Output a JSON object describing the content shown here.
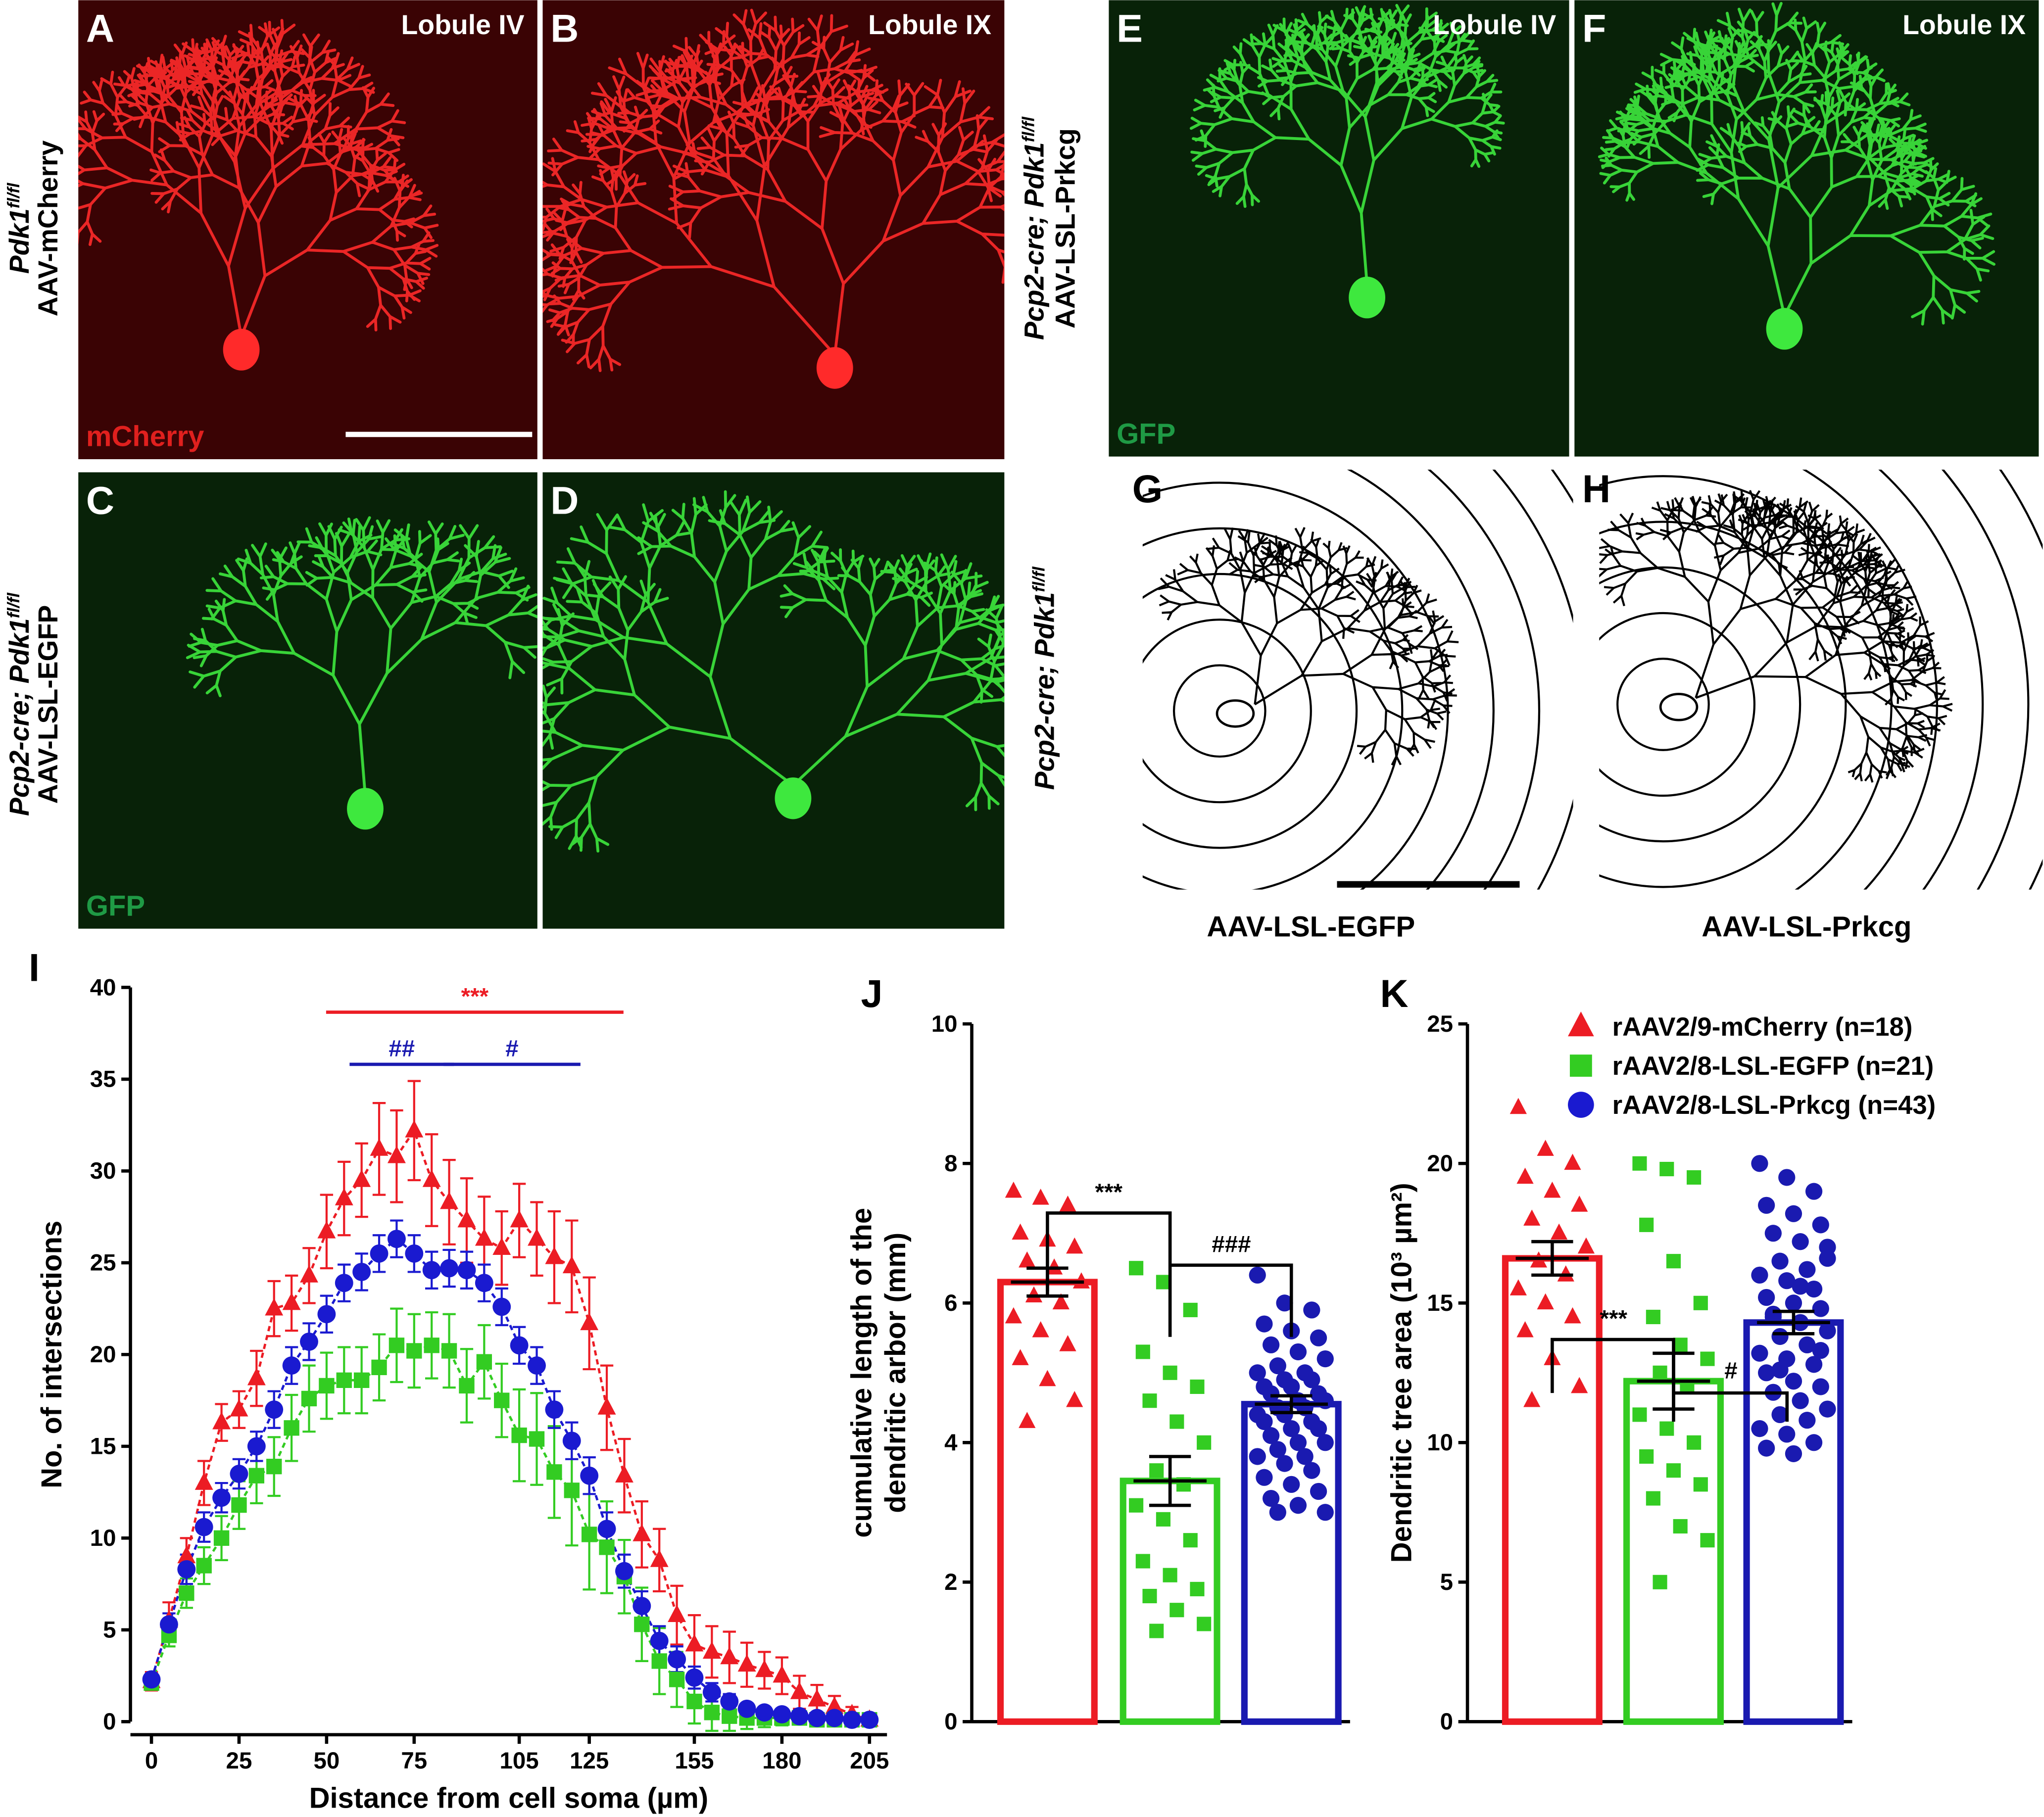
{
  "images": [
    {
      "letter": "A",
      "region": "Lobule IV",
      "stain": "mCherry",
      "color": "#ff2a2a",
      "stain_color": "#e0201e"
    },
    {
      "letter": "B",
      "region": "Lobule IX",
      "color": "#ff2a2a"
    },
    {
      "letter": "C",
      "stain": "GFP",
      "color": "#3ee83e",
      "stain_color": "#1f9a45"
    },
    {
      "letter": "D",
      "color": "#3ee83e"
    },
    {
      "letter": "E",
      "region": "Lobule IV",
      "stain": "GFP",
      "color": "#3ee83e",
      "stain_color": "#1f9a45"
    },
    {
      "letter": "F",
      "region": "Lobule IX",
      "color": "#3ee83e"
    }
  ],
  "genotype_labels": [
    {
      "lines": [
        {
          "text": "Pdk1",
          "sup": "fl/fl"
        },
        {
          "text": "AAV-mCherry"
        }
      ]
    },
    {
      "lines": [
        {
          "text": "Pcp2-cre; Pdk1",
          "sup": "fl/fl"
        },
        {
          "text": "AAV-LSL-EGFP"
        }
      ]
    },
    {
      "lines": [
        {
          "text": "Pcp2-cre; Pdk1",
          "sup": "fl/fl"
        },
        {
          "text": "AAV-LSL-Prkcg"
        }
      ]
    },
    {
      "lines": [
        {
          "text": "Pcp2-cre; Pdk1",
          "sup": "fl/fl"
        }
      ]
    }
  ],
  "tracings": [
    {
      "letter": "G",
      "caption": "AAV-LSL-EGFP"
    },
    {
      "letter": "H",
      "caption": "AAV-LSL-Prkcg"
    }
  ],
  "chart_data": [
    {
      "type": "line",
      "panel": "I",
      "xlabel": "Distance from cell soma (µm)",
      "ylabel": "No. of intersections",
      "x": [
        0,
        5,
        10,
        15,
        20,
        25,
        30,
        35,
        40,
        45,
        50,
        55,
        60,
        65,
        70,
        75,
        80,
        85,
        90,
        95,
        100,
        105,
        110,
        115,
        120,
        125,
        130,
        135,
        140,
        145,
        150,
        155,
        160,
        165,
        170,
        175,
        180,
        185,
        190,
        195,
        200,
        205
      ],
      "xlim": [
        -6,
        210
      ],
      "xticks": [
        0,
        25,
        50,
        75,
        105,
        125,
        155,
        180,
        205
      ],
      "ylim": [
        0,
        40
      ],
      "yticks": [
        0,
        5,
        10,
        15,
        20,
        25,
        30,
        35,
        40
      ],
      "series": [
        {
          "name": "rAAV2/9-mCherry (n=18)",
          "color": "#ec1c24",
          "marker": "triangle",
          "values": [
            2.2,
            5.5,
            9,
            13,
            16.3,
            17,
            18.7,
            22.5,
            22.8,
            24.3,
            26.7,
            28.5,
            29.5,
            31.2,
            30.8,
            32.2,
            29.5,
            28.3,
            27.3,
            26.3,
            25.8,
            27.3,
            26.3,
            25.3,
            24.8,
            21.7,
            17.1,
            13.4,
            10.2,
            8.8,
            5.8,
            4.2,
            3.8,
            3.5,
            3.1,
            2.8,
            2.5,
            1.6,
            1.2,
            0.8,
            0.4,
            0.1
          ],
          "errors": [
            0.5,
            1.0,
            1.0,
            1.2,
            1.0,
            1.0,
            1.5,
            1.5,
            1.5,
            1.5,
            2.0,
            2.0,
            2.0,
            2.5,
            2.5,
            2.7,
            2.5,
            2.3,
            2.3,
            2.3,
            2.0,
            2.0,
            2.0,
            2.5,
            2.5,
            2.5,
            2.3,
            2.0,
            1.8,
            1.7,
            1.6,
            1.6,
            1.4,
            1.4,
            1.2,
            1.0,
            1.0,
            0.9,
            0.8,
            0.6,
            0.4,
            0.2
          ]
        },
        {
          "name": "rAAV2/8-LSL-EGFP (n=21)",
          "color": "#33cc22",
          "marker": "square",
          "values": [
            2.1,
            4.7,
            7,
            8.5,
            10,
            11.8,
            13.4,
            13.9,
            16,
            17.6,
            18.3,
            18.6,
            18.6,
            19.3,
            20.5,
            20.2,
            20.5,
            20.2,
            18.3,
            19.6,
            17.5,
            15.6,
            15.4,
            13.6,
            12.6,
            10.2,
            9.5,
            7.9,
            5.3,
            3.3,
            2.3,
            1.1,
            0.5,
            0.3,
            0.2,
            0.2,
            0.2,
            0.2,
            0.1,
            0.1,
            0.1,
            0.1
          ],
          "errors": [
            0.3,
            0.6,
            0.8,
            1.0,
            1.2,
            1.3,
            1.5,
            1.6,
            1.8,
            1.8,
            1.8,
            1.8,
            1.8,
            1.8,
            2.0,
            2.0,
            1.8,
            2.0,
            2.0,
            2.0,
            2.0,
            2.5,
            2.5,
            2.5,
            3.0,
            3.0,
            2.5,
            2.0,
            2.0,
            1.8,
            1.5,
            1.2,
            1.0,
            0.8,
            0.6,
            0.5,
            0.4,
            0.3,
            0.2,
            0.2,
            0.2,
            0.1
          ]
        },
        {
          "name": "rAAV2/8-LSL-Prkcg (n=43)",
          "color": "#1a1ad0",
          "marker": "circle",
          "values": [
            2.3,
            5.3,
            8.3,
            10.6,
            12.2,
            13.5,
            15,
            17,
            19.4,
            20.7,
            22.2,
            23.9,
            24.5,
            25.5,
            26.3,
            25.5,
            24.6,
            24.7,
            24.6,
            23.9,
            22.6,
            20.5,
            19.4,
            17,
            15.3,
            13.4,
            10.5,
            8.2,
            6.3,
            4.4,
            3.4,
            2.4,
            1.6,
            1.1,
            0.7,
            0.5,
            0.4,
            0.3,
            0.2,
            0.2,
            0.1,
            0.1
          ],
          "errors": [
            0.3,
            0.6,
            0.8,
            0.8,
            0.8,
            0.8,
            0.8,
            1.0,
            1.0,
            1.0,
            1.0,
            1.0,
            1.0,
            1.0,
            1.0,
            1.0,
            1.0,
            1.0,
            1.0,
            1.0,
            1.0,
            1.0,
            1.0,
            1.0,
            1.0,
            1.0,
            0.9,
            0.9,
            0.8,
            0.8,
            0.7,
            0.6,
            0.5,
            0.4,
            0.3,
            0.2,
            0.2,
            0.2,
            0.1,
            0.1,
            0.1,
            0.1
          ]
        }
      ],
      "annotations": [
        {
          "text": "***",
          "color": "#ec1c24"
        },
        {
          "text": "##",
          "color": "#1a1ab0"
        },
        {
          "text": "#",
          "color": "#1a1ab0"
        }
      ]
    },
    {
      "type": "bar",
      "panel": "J",
      "ylabel": [
        "cumulative length of the",
        "dendritic arbor (mm)"
      ],
      "ylim": [
        0,
        10
      ],
      "yticks": [
        0,
        2,
        4,
        6,
        8,
        10
      ],
      "series": [
        {
          "color": "#ec1c24",
          "marker": "triangle",
          "value": 6.3,
          "error": 0.2,
          "points": [
            7.6,
            7.5,
            7.4,
            7.0,
            6.9,
            6.8,
            6.6,
            6.5,
            6.3,
            6.1,
            6.0,
            5.8,
            5.6,
            5.4,
            5.2,
            4.9,
            4.6,
            4.3
          ]
        },
        {
          "color": "#33cc22",
          "marker": "square",
          "value": 3.45,
          "error": 0.35,
          "points": [
            6.5,
            6.3,
            5.9,
            5.3,
            5.0,
            4.8,
            4.6,
            4.3,
            4.0,
            3.6,
            3.4,
            3.1,
            2.9,
            2.6,
            2.3,
            2.1,
            1.9,
            1.8,
            1.6,
            1.4,
            1.3
          ]
        },
        {
          "color": "#1a1ab0",
          "marker": "circle",
          "value": 4.55,
          "error": 0.12,
          "points": [
            6.4,
            6.0,
            5.9,
            5.7,
            5.6,
            5.5,
            5.4,
            5.3,
            5.2,
            5.1,
            5.0,
            5.0,
            4.9,
            4.9,
            4.8,
            4.8,
            4.7,
            4.7,
            4.6,
            4.6,
            4.5,
            4.5,
            4.4,
            4.4,
            4.3,
            4.3,
            4.2,
            4.2,
            4.1,
            4.0,
            4.0,
            3.9,
            3.8,
            3.8,
            3.7,
            3.6,
            3.5,
            3.4,
            3.3,
            3.2,
            3.1,
            3.0,
            3.0
          ]
        }
      ],
      "annotations": [
        "***",
        "###"
      ]
    },
    {
      "type": "bar",
      "panel": "K",
      "ylabel": "Dendritic tree area (10³ µm²)",
      "ylim": [
        0,
        25
      ],
      "yticks": [
        0,
        5,
        10,
        15,
        20,
        25
      ],
      "series": [
        {
          "color": "#ec1c24",
          "marker": "triangle",
          "value": 16.6,
          "error": 0.6,
          "points": [
            22,
            20.5,
            20,
            19.5,
            19,
            18.5,
            18,
            17.5,
            17,
            16.5,
            16,
            15.5,
            15,
            14.5,
            14,
            13,
            12,
            11.5
          ]
        },
        {
          "color": "#33cc22",
          "marker": "square",
          "value": 12.2,
          "error": 1.0,
          "points": [
            20,
            19.8,
            19.5,
            17.8,
            16.5,
            15,
            14.5,
            13.5,
            13,
            12.5,
            12,
            11,
            10.5,
            10,
            9.5,
            9,
            8.5,
            8,
            7,
            6.5,
            5
          ]
        },
        {
          "color": "#1a1ab0",
          "marker": "circle",
          "value": 14.3,
          "error": 0.4,
          "points": [
            20,
            19.5,
            19,
            18.5,
            18.2,
            17.8,
            17.5,
            17.2,
            17,
            16.5,
            16.2,
            16,
            15.8,
            15.5,
            15.2,
            15,
            14.8,
            14.5,
            14.3,
            14,
            13.8,
            13.5,
            13.2,
            13,
            12.8,
            12.5,
            12.2,
            12,
            11.8,
            11.5,
            11.2,
            11,
            10.8,
            10.5,
            10.3,
            10,
            9.8,
            9.6,
            13.3,
            14.6,
            15.6,
            16.6,
            12.6
          ]
        }
      ],
      "annotations": [
        "***",
        "#"
      ]
    }
  ]
}
